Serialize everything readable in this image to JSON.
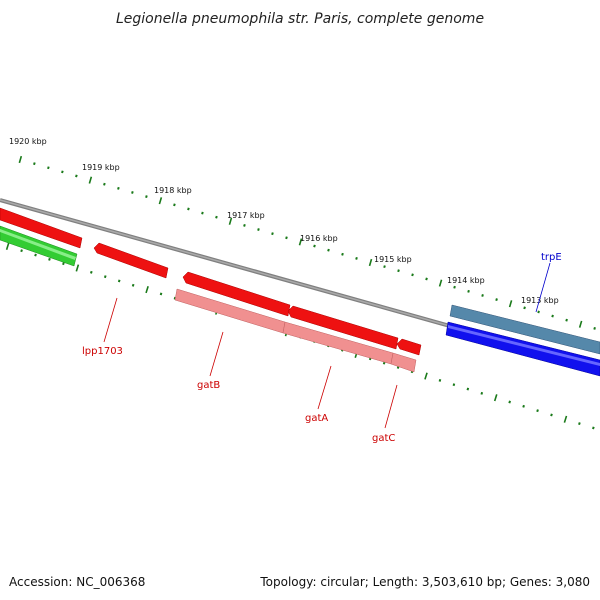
{
  "title": "Legionella pneumophila str. Paris, complete genome",
  "footer": {
    "accession": "Accession: NC_006368",
    "summary": "Topology: circular; Length: 3,503,610 bp; Genes: 3,080"
  },
  "colors": {
    "backbone": "#808080",
    "gene_forward_red": "#ee1111",
    "gene_light_red": "#f09090",
    "gene_green": "#33cc33",
    "gene_blue": "#1111ee",
    "gene_steelblue": "#5588aa",
    "tick": "#1a7a1a",
    "label_red": "#cc0000",
    "label_blue": "#0000cc"
  },
  "ticks": {
    "labels": [
      "1920 kbp",
      "1919 kbp",
      "1918 kbp",
      "1917 kbp",
      "1916 kbp",
      "1915 kbp",
      "1914 kbp",
      "1913 kbp"
    ]
  },
  "genes": [
    {
      "label": "",
      "color": "gene_green",
      "strand": "reverse"
    },
    {
      "label": "",
      "color": "gene_forward_red",
      "strand": "reverse"
    },
    {
      "label": "lpp1703",
      "color": "gene_forward_red",
      "strand": "reverse"
    },
    {
      "label": "",
      "color": "gene_forward_red",
      "strand": "reverse"
    },
    {
      "label": "gatB",
      "color": "gene_light_red",
      "strand": "reverse"
    },
    {
      "label": "",
      "color": "gene_forward_red",
      "strand": "reverse"
    },
    {
      "label": "gatA",
      "color": "gene_light_red",
      "strand": "reverse"
    },
    {
      "label": "",
      "color": "gene_forward_red",
      "strand": "reverse"
    },
    {
      "label": "gatC",
      "color": "gene_light_red",
      "strand": "reverse"
    },
    {
      "label": "trpE",
      "color": "gene_steelblue",
      "strand": "forward"
    },
    {
      "label": "",
      "color": "gene_blue",
      "strand": "forward"
    }
  ]
}
